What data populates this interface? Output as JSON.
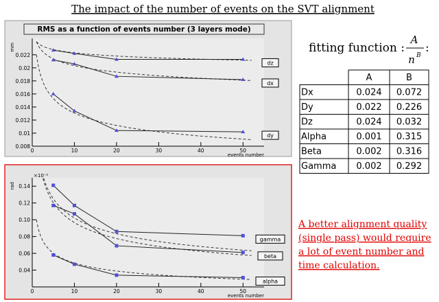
{
  "title": "The impact of the number of events on the SVT alignment",
  "chart_data": [
    {
      "type": "line",
      "title": "RMS as a function of events number (3 layers mode)",
      "ylabel": "mm",
      "xlabel": "events number",
      "x": [
        5,
        10,
        20,
        50
      ],
      "xlim": [
        0,
        55
      ],
      "xticks": [
        0,
        10,
        20,
        30,
        40,
        50
      ],
      "ylim": [
        0.008,
        0.0245
      ],
      "yticks": [
        0.008,
        0.01,
        0.012,
        0.014,
        0.016,
        0.018,
        0.02,
        0.022
      ],
      "marker": "triangle",
      "series": [
        {
          "name": "dz",
          "color": "#5050d8",
          "values": [
            0.0227,
            0.0222,
            0.0213,
            0.0213
          ]
        },
        {
          "name": "dx",
          "color": "#5050d8",
          "values": [
            0.0212,
            0.0206,
            0.0187,
            0.0182
          ]
        },
        {
          "name": "dy",
          "color": "#5050d8",
          "values": [
            0.016,
            0.0134,
            0.0104,
            0.0102
          ]
        }
      ]
    },
    {
      "type": "line",
      "ylabel": "rad",
      "y_multiplier": "×10⁻²",
      "xlabel": "events number",
      "x": [
        5,
        10,
        20,
        50
      ],
      "xlim": [
        0,
        55
      ],
      "xticks": [
        0,
        10,
        20,
        30,
        40,
        50
      ],
      "ylim": [
        0.0002,
        0.0015
      ],
      "yticks": [
        {
          "value": 0.0004,
          "label": "0.04"
        },
        {
          "value": 0.0006,
          "label": "0.06"
        },
        {
          "value": 0.0008,
          "label": "0.08"
        },
        {
          "value": 0.001,
          "label": "0.10"
        },
        {
          "value": 0.0012,
          "label": "0.12"
        },
        {
          "value": 0.0014,
          "label": "0.14"
        }
      ],
      "marker": "square",
      "series": [
        {
          "name": "gamma",
          "color": "#5050d8",
          "values": [
            0.00141,
            0.00117,
            0.00086,
            0.00081
          ]
        },
        {
          "name": "beta",
          "color": "#5050d8",
          "values": [
            0.00117,
            0.00107,
            0.00069,
            0.00061
          ]
        },
        {
          "name": "alpha",
          "color": "#5050d8",
          "values": [
            0.00058,
            0.00047,
            0.00034,
            0.00031
          ]
        }
      ]
    }
  ],
  "fitting": {
    "prefix": "fitting function :",
    "numerator": "A",
    "base": "n",
    "exponent": "B",
    "suffix": ":"
  },
  "table": {
    "header": [
      "A",
      "B"
    ],
    "rows": [
      [
        "Dx",
        0.024,
        0.072
      ],
      [
        "Dy",
        0.022,
        0.226
      ],
      [
        "Dz",
        0.024,
        0.032
      ],
      [
        "Alpha",
        0.001,
        0.315
      ],
      [
        "Beta",
        0.002,
        0.316
      ],
      [
        "Gamma",
        0.002,
        0.292
      ]
    ]
  },
  "note": [
    "A better alignment quality",
    "(single pass) would require",
    "a lot of event number and",
    "time calculation."
  ]
}
